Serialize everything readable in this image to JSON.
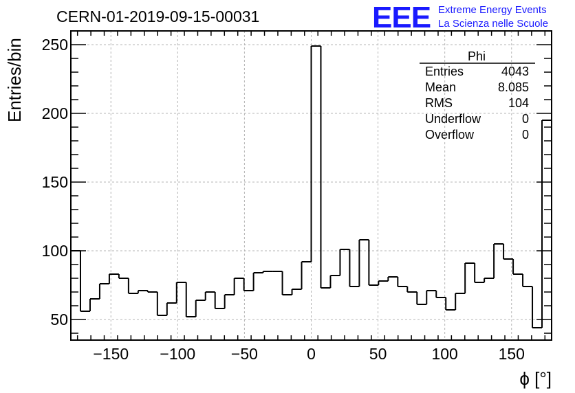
{
  "header": {
    "title": "CERN-01-2019-09-15-00031",
    "logo_text": "EEE",
    "logo_line1": "Extreme Energy Events",
    "logo_line2": "La Scienza nelle Scuole"
  },
  "stats_box": {
    "name": "Phi",
    "rows": [
      {
        "label": "Entries",
        "value": "4043"
      },
      {
        "label": "Mean",
        "value": "8.085"
      },
      {
        "label": "RMS",
        "value": "104"
      },
      {
        "label": "Underflow",
        "value": "0"
      },
      {
        "label": "Overflow",
        "value": "0"
      }
    ]
  },
  "colors": {
    "line": "#000000",
    "grid": "#b4b4b4",
    "logo": "#1a1aff"
  },
  "chart_data": {
    "type": "bar",
    "style": "step-histogram",
    "xlabel": "ϕ [°]",
    "ylabel": "Entries/bin",
    "xlim": [
      -180,
      180
    ],
    "ylim": [
      35,
      260
    ],
    "grid": true,
    "bin_width": 7.2,
    "x_ticks": [
      -150,
      -100,
      -50,
      0,
      50,
      100,
      150
    ],
    "y_ticks": [
      50,
      100,
      150,
      200,
      250
    ],
    "x_tick_labels": [
      "−150",
      "−100",
      "−50",
      "0",
      "50",
      "100",
      "150"
    ],
    "y_tick_labels": [
      "50",
      "100",
      "150",
      "200",
      "250"
    ],
    "series": [
      {
        "bin_start": -180,
        "values": [
          100,
          56,
          65,
          76,
          83,
          80,
          69,
          71,
          70,
          53,
          62,
          77,
          52,
          64,
          70,
          58,
          68,
          80,
          71,
          84,
          85,
          85,
          68,
          72,
          92,
          249,
          73,
          82,
          101,
          74,
          108,
          75,
          78,
          81,
          74,
          70,
          61,
          71,
          66,
          57,
          69,
          91,
          77,
          80,
          105,
          94,
          83,
          74,
          44,
          195
        ]
      }
    ]
  }
}
